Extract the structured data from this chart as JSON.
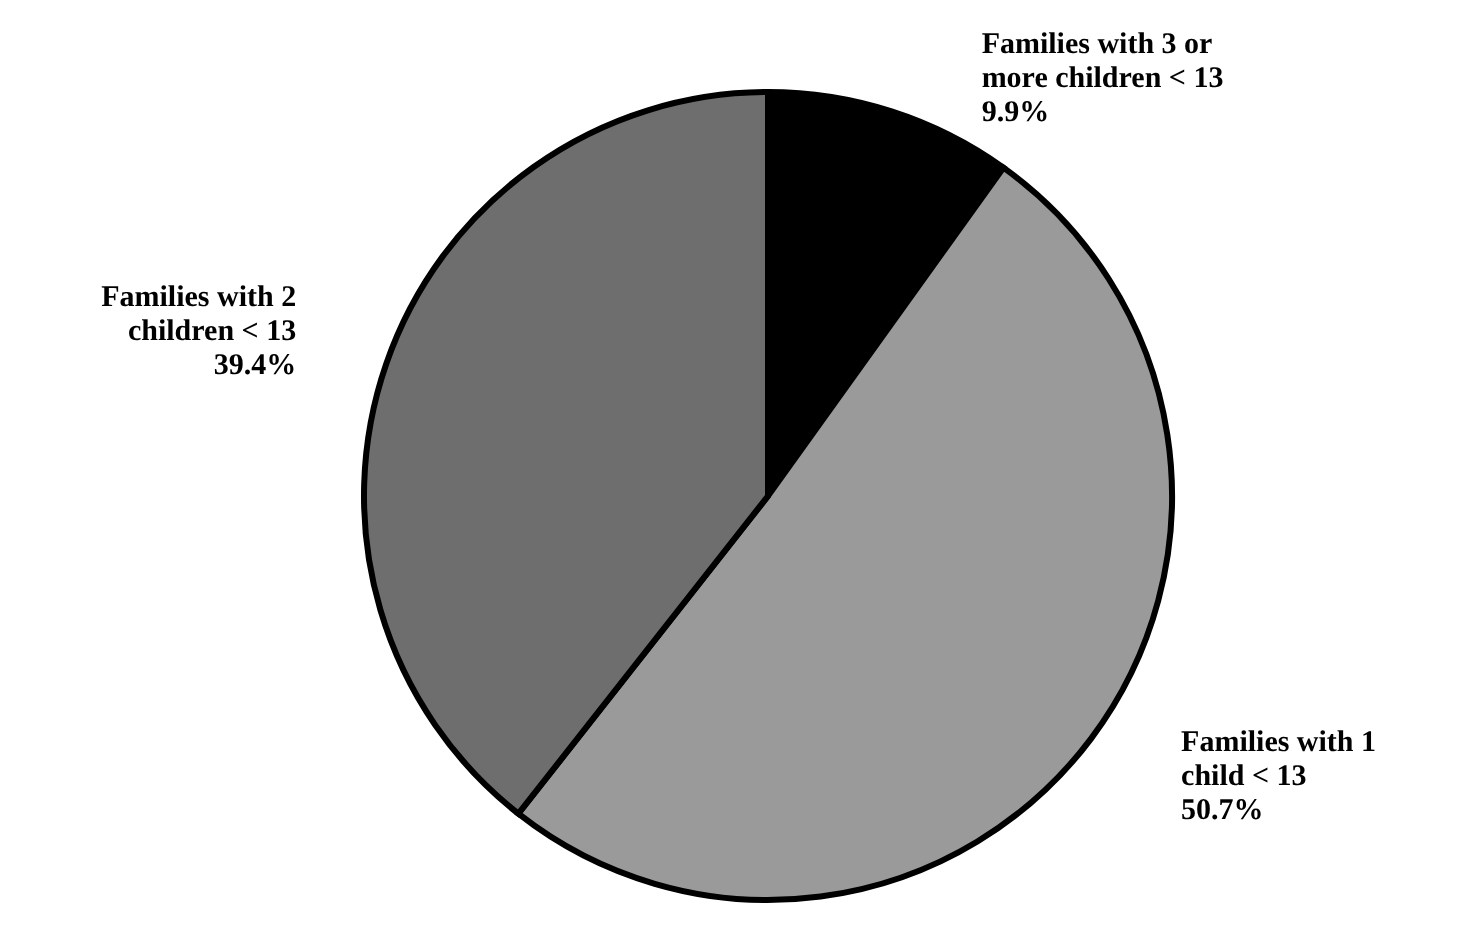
{
  "chart_data": {
    "type": "pie",
    "categories": [
      "Families with 3 or more children < 13",
      "Families with 1 child < 13",
      "Families with 2 children < 13"
    ],
    "values": [
      9.9,
      50.7,
      39.4
    ],
    "colors": [
      "#000000",
      "#9a9a9a",
      "#6e6e6e"
    ],
    "value_labels": [
      "9.9%",
      "50.7%",
      "39.4%"
    ]
  }
}
